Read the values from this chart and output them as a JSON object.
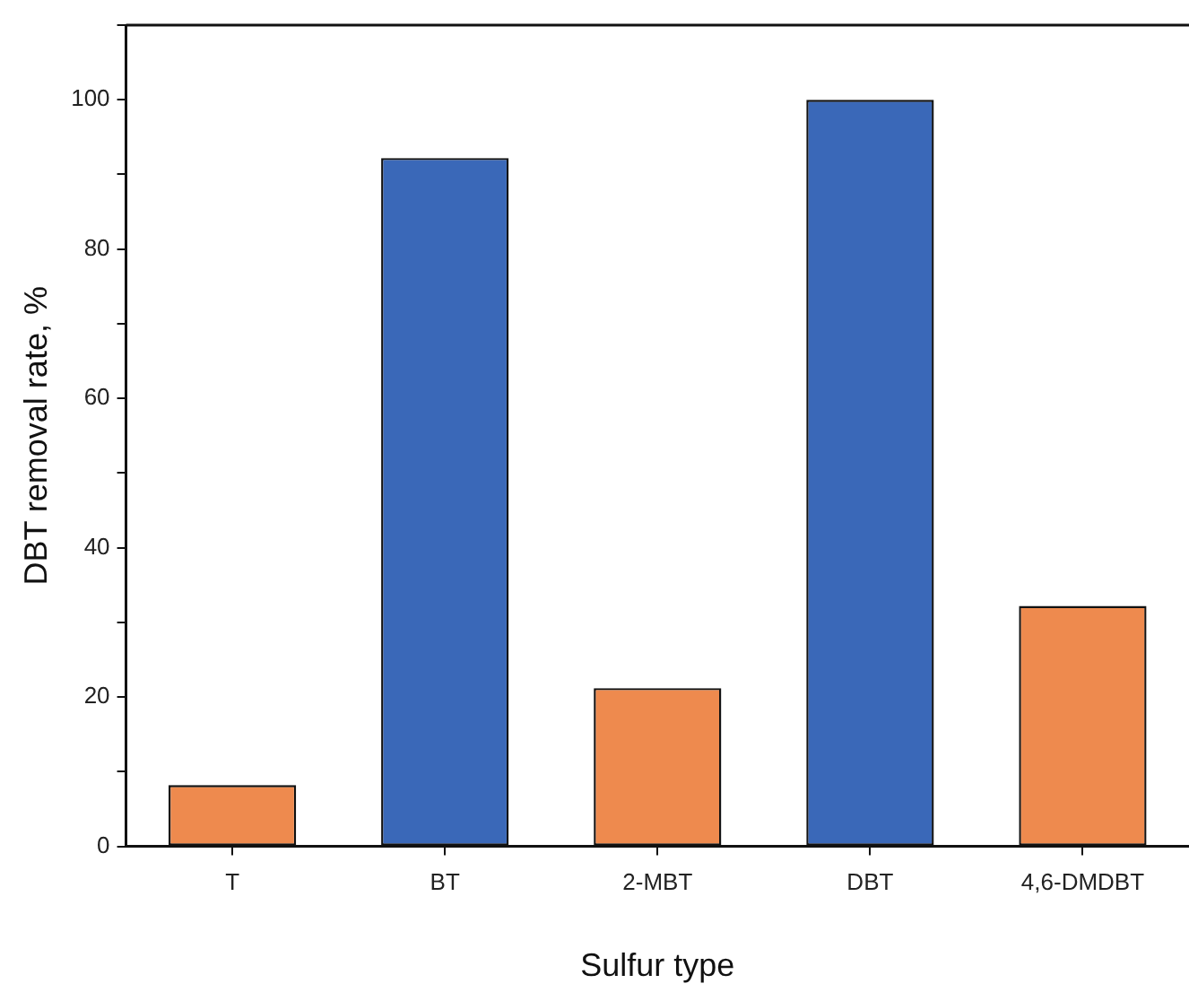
{
  "chart_data": {
    "type": "bar",
    "xlabel": "Sulfur type",
    "ylabel": "DBT removal rate, %",
    "categories": [
      "T",
      "BT",
      "2-MBT",
      "DBT",
      "4,6-DMDBT"
    ],
    "values": [
      8.2,
      92.2,
      21.2,
      100,
      32.2
    ],
    "colors": [
      "#ee8a4e",
      "#3a68b8",
      "#ee8a4e",
      "#3a68b8",
      "#ee8a4e"
    ],
    "ylim": [
      0,
      110
    ],
    "yticks": [
      0,
      {
        "value": 10,
        "label": null
      },
      20,
      {
        "value": 30,
        "label": null
      },
      40,
      {
        "value": 50,
        "label": null
      },
      60,
      {
        "value": 70,
        "label": null
      },
      80,
      {
        "value": 90,
        "label": null
      },
      100,
      {
        "value": 110,
        "label": null
      }
    ],
    "grid": false,
    "legend": false
  }
}
